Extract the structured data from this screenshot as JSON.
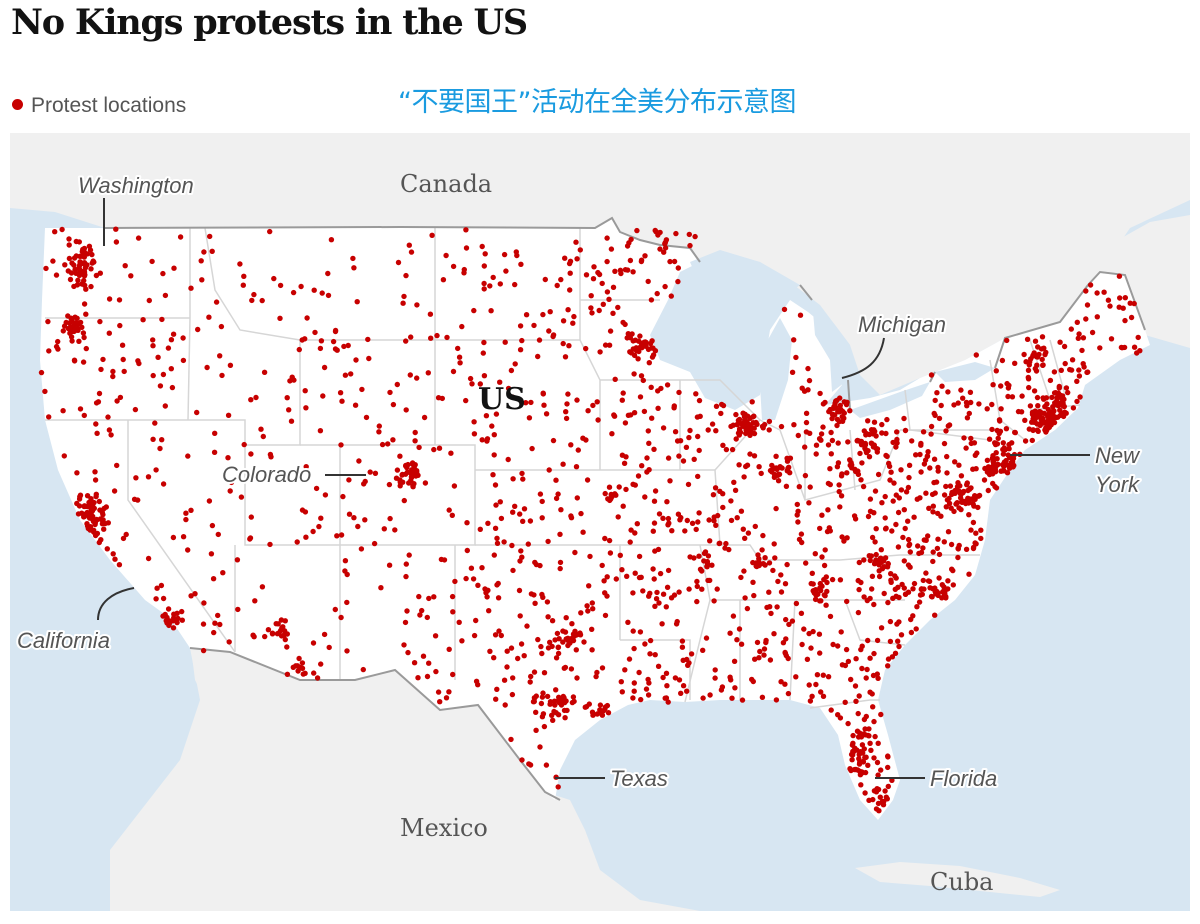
{
  "title": "No Kings protests in the US",
  "legend": {
    "label": "Protest locations",
    "color": "#c70000"
  },
  "caption_cn": "“不要国王”活动在全美分布示意图",
  "map": {
    "country_labels": [
      "Canada",
      "Mexico",
      "Cuba"
    ],
    "main_country": "US",
    "state_labels": {
      "washington": "Washington",
      "michigan": "Michigan",
      "colorado": "Colorado",
      "new_york": [
        "New",
        "York"
      ],
      "california": "California",
      "texas": "Texas",
      "florida": "Florida"
    },
    "colors": {
      "water": "#d7e6f2",
      "land_us": "#ffffff",
      "land_other": "#f0f0f0",
      "borders": "#d6d6d6",
      "national_border": "#9a9a9a",
      "dot": "#c70000"
    }
  }
}
